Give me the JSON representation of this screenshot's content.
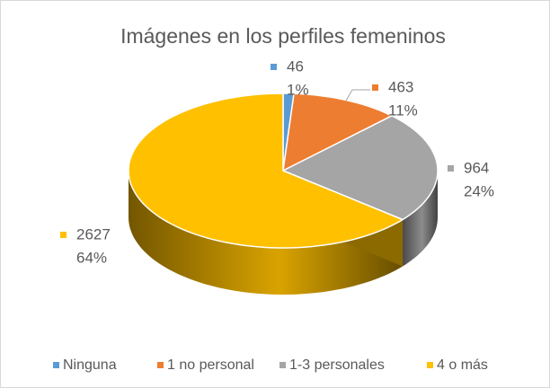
{
  "chart_data": {
    "type": "pie3d",
    "title": "Imágenes en los perfiles femeninos",
    "categories": [
      "Ninguna",
      "1 no personal",
      "1-3 personales",
      "4 o más"
    ],
    "values": [
      46,
      463,
      964,
      2627
    ],
    "percent_labels": [
      "1%",
      "11%",
      "24%",
      "64%"
    ],
    "colors": [
      "#5b9bd5",
      "#ed7d31",
      "#a5a5a5",
      "#ffc000"
    ],
    "legend": "bottom"
  }
}
